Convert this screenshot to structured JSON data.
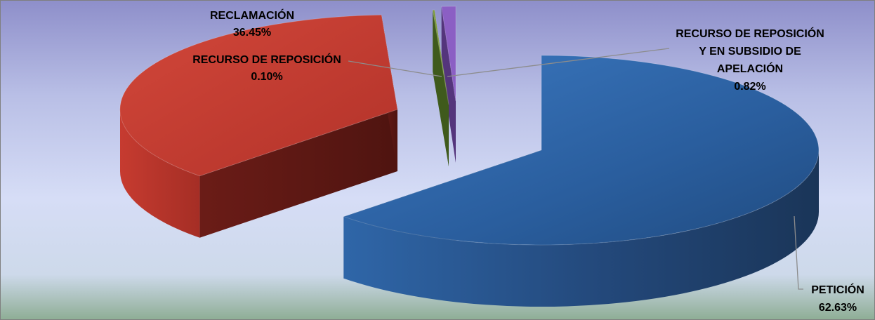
{
  "chart_data": {
    "type": "pie",
    "variant": "3d-exploded",
    "title": "",
    "slices": [
      {
        "name": "PETICIÓN",
        "value": 62.63,
        "label": "62.63%",
        "color": "#2e63a3"
      },
      {
        "name": "RECLAMACIÓN",
        "value": 36.45,
        "label": "36.45%",
        "color": "#c0392b"
      },
      {
        "name": "RECURSO DE REPOSICIÓN",
        "value": 0.1,
        "label": "0.10%",
        "color": "#7a9a3a"
      },
      {
        "name": "RECURSO DE REPOSICIÓN Y EN SUBSIDIO DE APELACIÓN",
        "value": 0.82,
        "label": "0.82%",
        "color": "#8a5cc2"
      }
    ],
    "labels": {
      "peticion": {
        "line1": "PETICIÓN",
        "pct": "62.63%"
      },
      "reclamacion": {
        "line1": "RECLAMACIÓN",
        "pct": "36.45%"
      },
      "reposicion": {
        "line1": "RECURSO DE REPOSICIÓN",
        "pct": "0.10%"
      },
      "apelacion": {
        "line1": "RECURSO DE REPOSICIÓN",
        "line2": "Y EN SUBSIDIO DE",
        "line3": "APELACIÓN",
        "pct": "0.82%"
      }
    },
    "legend": "none",
    "grid": false
  }
}
